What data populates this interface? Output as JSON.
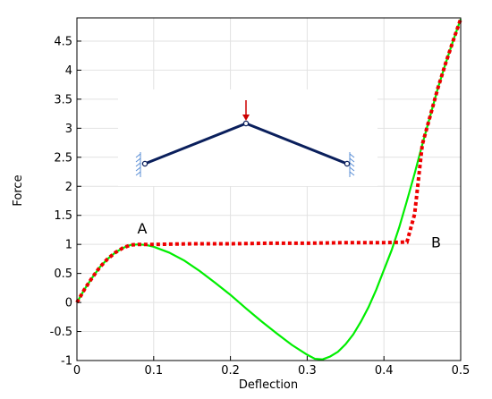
{
  "chart_data": {
    "type": "line",
    "title": "",
    "xlabel": "Deflection",
    "ylabel": "Force",
    "xlim": [
      0,
      0.5
    ],
    "ylim": [
      -1,
      4.9
    ],
    "x_ticks": [
      {
        "value": 0,
        "label": "0"
      },
      {
        "value": 0.1,
        "label": "0.1"
      },
      {
        "value": 0.2,
        "label": "0.2"
      },
      {
        "value": 0.3,
        "label": "0.3"
      },
      {
        "value": 0.4,
        "label": "0.4"
      },
      {
        "value": 0.5,
        "label": "0.5"
      }
    ],
    "y_ticks": [
      {
        "value": -1,
        "label": "-1"
      },
      {
        "value": -0.5,
        "label": "-0.5"
      },
      {
        "value": 0,
        "label": "0"
      },
      {
        "value": 0.5,
        "label": "0.5"
      },
      {
        "value": 1,
        "label": "1"
      },
      {
        "value": 1.5,
        "label": "1.5"
      },
      {
        "value": 2,
        "label": "2"
      },
      {
        "value": 2.5,
        "label": "2.5"
      },
      {
        "value": 3,
        "label": "3"
      },
      {
        "value": 3.5,
        "label": "3.5"
      },
      {
        "value": 4,
        "label": "4"
      },
      {
        "value": 4.5,
        "label": "4.5"
      }
    ],
    "grid": true,
    "series": [
      {
        "color": "#00ee00",
        "style": "solid",
        "x": [
          0,
          0.01,
          0.02,
          0.03,
          0.04,
          0.05,
          0.06,
          0.07,
          0.08,
          0.09,
          0.1,
          0.12,
          0.14,
          0.16,
          0.18,
          0.2,
          0.22,
          0.24,
          0.26,
          0.28,
          0.3,
          0.31,
          0.32,
          0.33,
          0.34,
          0.35,
          0.36,
          0.37,
          0.38,
          0.39,
          0.4,
          0.41,
          0.42,
          0.43,
          0.44,
          0.45,
          0.46,
          0.47,
          0.48,
          0.49,
          0.5
        ],
        "y": [
          0,
          0.23,
          0.43,
          0.61,
          0.75,
          0.86,
          0.94,
          0.99,
          1.0,
          0.99,
          0.96,
          0.86,
          0.72,
          0.54,
          0.34,
          0.13,
          -0.1,
          -0.32,
          -0.53,
          -0.73,
          -0.9,
          -0.97,
          -0.98,
          -0.93,
          -0.85,
          -0.72,
          -0.55,
          -0.33,
          -0.08,
          0.22,
          0.56,
          0.9,
          1.3,
          1.75,
          2.22,
          2.72,
          3.2,
          3.68,
          4.1,
          4.5,
          4.88
        ]
      },
      {
        "color": "#ee0000",
        "style": "dotted",
        "x": [
          0,
          0.01,
          0.02,
          0.03,
          0.04,
          0.05,
          0.06,
          0.07,
          0.08,
          0.09,
          0.1,
          0.15,
          0.2,
          0.25,
          0.3,
          0.35,
          0.4,
          0.43,
          0.44,
          0.45,
          0.46,
          0.47,
          0.48,
          0.49,
          0.5
        ],
        "y": [
          0,
          0.23,
          0.43,
          0.61,
          0.75,
          0.86,
          0.94,
          0.99,
          1.0,
          1.0,
          1.0,
          1.01,
          1.01,
          1.02,
          1.02,
          1.03,
          1.03,
          1.04,
          1.52,
          2.72,
          3.2,
          3.68,
          4.1,
          4.5,
          4.88
        ]
      }
    ],
    "annotations": [
      {
        "text": "A",
        "x": 0.085,
        "y": 1.28
      },
      {
        "text": "B",
        "x": 0.468,
        "y": 1.04
      }
    ],
    "inset": {
      "type": "truss-diagram",
      "members": 2,
      "load_arrow_color": "#cc0000",
      "member_color": "#0a1f5c",
      "support_color": "#5b8fd6"
    }
  }
}
